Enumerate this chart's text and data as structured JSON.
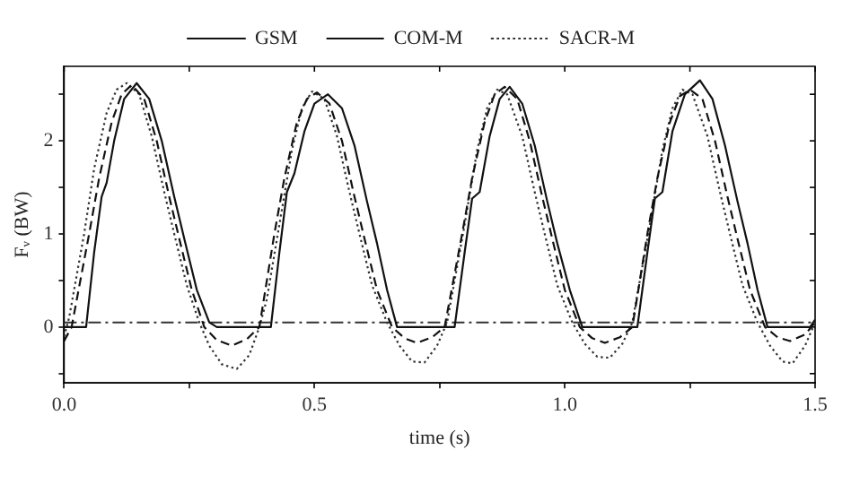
{
  "chart_data": {
    "type": "line",
    "xlabel": "time (s)",
    "ylabel": "Fᵥ (BW)",
    "xlim": [
      0,
      1.5
    ],
    "ylim": [
      -0.6,
      2.8
    ],
    "xticks": [
      {
        "value": 0,
        "label": "0.0"
      },
      {
        "value": 0.25,
        "label": null
      },
      0.5,
      {
        "value": 0.75,
        "label": null
      },
      {
        "value": 1,
        "label": "1.0"
      },
      {
        "value": 1.25,
        "label": null
      },
      1.5
    ],
    "yticks": [
      {
        "value": -0.5,
        "label": null
      },
      0,
      {
        "value": 0.5,
        "label": null
      },
      1,
      {
        "value": 1.5,
        "label": null
      },
      2,
      {
        "value": 2.5,
        "label": null
      }
    ],
    "grid": false,
    "legend": "top",
    "marker": "none",
    "ref_lines": [
      {
        "axis": "y",
        "value": 0.05,
        "color": "#333333",
        "line_style": "dashdot"
      }
    ],
    "series": [
      {
        "name": "GSM",
        "color": "#111111",
        "line_style": "solid",
        "x": [
          0,
          0.044,
          0.06,
          0.075,
          0.085,
          0.1,
          0.12,
          0.145,
          0.17,
          0.195,
          0.22,
          0.24,
          0.265,
          0.29,
          0.305,
          0.413,
          0.43,
          0.445,
          0.46,
          0.48,
          0.5,
          0.527,
          0.555,
          0.58,
          0.605,
          0.625,
          0.645,
          0.665,
          0.78,
          0.8,
          0.815,
          0.83,
          0.85,
          0.87,
          0.89,
          0.915,
          0.94,
          0.965,
          0.985,
          1.01,
          1.035,
          1.145,
          1.165,
          1.18,
          1.195,
          1.215,
          1.24,
          1.27,
          1.295,
          1.32,
          1.345,
          1.365,
          1.385,
          1.405,
          1.49,
          1.5
        ],
        "values": [
          0,
          0,
          0.8,
          1.4,
          1.55,
          2.0,
          2.45,
          2.62,
          2.45,
          2.0,
          1.4,
          0.95,
          0.4,
          0.05,
          0,
          0,
          0.8,
          1.45,
          1.65,
          2.1,
          2.4,
          2.5,
          2.35,
          1.95,
          1.35,
          0.9,
          0.4,
          0,
          0,
          0.8,
          1.38,
          1.45,
          2.05,
          2.45,
          2.58,
          2.4,
          1.95,
          1.35,
          0.9,
          0.4,
          0,
          0,
          0.8,
          1.38,
          1.45,
          2.1,
          2.5,
          2.65,
          2.45,
          1.95,
          1.35,
          0.9,
          0.4,
          0,
          0,
          0.08
        ]
      },
      {
        "name": "COM-M",
        "color": "#111111",
        "line_style": "dashed",
        "x": [
          0,
          0.015,
          0.05,
          0.07,
          0.095,
          0.115,
          0.135,
          0.16,
          0.185,
          0.21,
          0.23,
          0.255,
          0.28,
          0.305,
          0.335,
          0.365,
          0.39,
          0.42,
          0.44,
          0.465,
          0.485,
          0.505,
          0.53,
          0.555,
          0.58,
          0.6,
          0.625,
          0.655,
          0.68,
          0.705,
          0.735,
          0.76,
          0.795,
          0.815,
          0.84,
          0.86,
          0.88,
          0.905,
          0.93,
          0.955,
          0.975,
          1.0,
          1.03,
          1.055,
          1.08,
          1.11,
          1.135,
          1.165,
          1.185,
          1.21,
          1.23,
          1.25,
          1.275,
          1.3,
          1.325,
          1.345,
          1.37,
          1.4,
          1.425,
          1.45,
          1.48,
          1.5
        ],
        "values": [
          -0.15,
          0,
          1.0,
          1.6,
          2.2,
          2.5,
          2.6,
          2.45,
          2.0,
          1.4,
          0.95,
          0.4,
          0,
          -0.14,
          -0.2,
          -0.13,
          0,
          1.0,
          1.6,
          2.2,
          2.45,
          2.52,
          2.4,
          2.0,
          1.4,
          0.95,
          0.4,
          0,
          -0.12,
          -0.17,
          -0.11,
          0,
          1.0,
          1.6,
          2.2,
          2.5,
          2.58,
          2.45,
          2.0,
          1.4,
          0.95,
          0.4,
          0,
          -0.12,
          -0.17,
          -0.11,
          0,
          1.0,
          1.6,
          2.2,
          2.48,
          2.55,
          2.45,
          2.0,
          1.4,
          0.95,
          0.4,
          0,
          -0.11,
          -0.15,
          -0.08,
          0.05
        ]
      },
      {
        "name": "SACR-M",
        "color": "#333333",
        "line_style": "dotted",
        "x": [
          0,
          0.01,
          0.04,
          0.06,
          0.085,
          0.105,
          0.125,
          0.15,
          0.175,
          0.2,
          0.22,
          0.245,
          0.27,
          0.29,
          0.315,
          0.345,
          0.37,
          0.39,
          0.405,
          0.43,
          0.455,
          0.475,
          0.495,
          0.52,
          0.545,
          0.57,
          0.59,
          0.615,
          0.645,
          0.67,
          0.695,
          0.72,
          0.745,
          0.765,
          0.8,
          0.825,
          0.845,
          0.865,
          0.885,
          0.915,
          0.94,
          0.96,
          0.985,
          1.015,
          1.04,
          1.065,
          1.09,
          1.115,
          1.135,
          1.17,
          1.195,
          1.215,
          1.235,
          1.255,
          1.285,
          1.31,
          1.33,
          1.355,
          1.385,
          1.41,
          1.435,
          1.455,
          1.48,
          1.5
        ],
        "values": [
          -0.1,
          0.1,
          1.0,
          1.7,
          2.3,
          2.55,
          2.62,
          2.5,
          2.05,
          1.45,
          1.0,
          0.45,
          0.05,
          -0.2,
          -0.4,
          -0.45,
          -0.3,
          0,
          0.3,
          1.1,
          1.9,
          2.35,
          2.53,
          2.45,
          2.05,
          1.45,
          1.0,
          0.45,
          0.05,
          -0.2,
          -0.37,
          -0.38,
          -0.2,
          0.05,
          1.1,
          1.9,
          2.35,
          2.55,
          2.5,
          2.05,
          1.45,
          1.0,
          0.45,
          0.05,
          -0.18,
          -0.32,
          -0.33,
          -0.18,
          0.05,
          1.1,
          1.9,
          2.35,
          2.55,
          2.5,
          2.05,
          1.45,
          1.0,
          0.45,
          0.05,
          -0.2,
          -0.37,
          -0.39,
          -0.2,
          0.05
        ]
      }
    ]
  }
}
